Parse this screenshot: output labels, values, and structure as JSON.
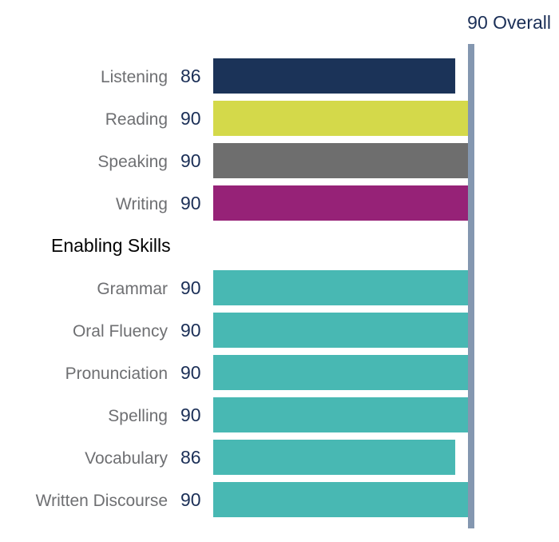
{
  "chart_data": {
    "type": "bar",
    "orientation": "horizontal",
    "overall": {
      "score": "90",
      "label": "Overall",
      "value": 90
    },
    "communicative_skills": [
      {
        "name": "Listening",
        "value": 86,
        "color": "#1b3358"
      },
      {
        "name": "Reading",
        "value": 90,
        "color": "#d4d94a"
      },
      {
        "name": "Speaking",
        "value": 90,
        "color": "#6e6e6e"
      },
      {
        "name": "Writing",
        "value": 90,
        "color": "#962277"
      }
    ],
    "enabling_skills_title": "Enabling Skills",
    "enabling_skills": [
      {
        "name": "Grammar",
        "value": 90,
        "color": "#48b8b3"
      },
      {
        "name": "Oral Fluency",
        "value": 90,
        "color": "#48b8b3"
      },
      {
        "name": "Pronunciation",
        "value": 90,
        "color": "#48b8b3"
      },
      {
        "name": "Spelling",
        "value": 90,
        "color": "#48b8b3"
      },
      {
        "name": "Vocabulary",
        "value": 86,
        "color": "#48b8b3"
      },
      {
        "name": "Written Discourse",
        "value": 90,
        "color": "#48b8b3"
      }
    ],
    "overall_line_color": "#8497b0",
    "xlim": [
      10,
      90
    ]
  }
}
